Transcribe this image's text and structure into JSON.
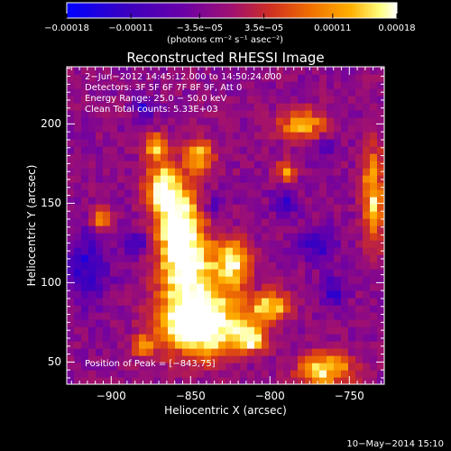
{
  "chart_data": {
    "type": "heatmap",
    "title": "Reconstructed RHESSI Image",
    "xlabel": "Heliocentric X (arcsec)",
    "ylabel": "Heliocentric Y (arcsec)",
    "xlim": [
      -928,
      -728
    ],
    "ylim": [
      36,
      236
    ],
    "xticks": [
      "−900",
      "−850",
      "−800",
      "−750"
    ],
    "xtick_values": [
      -900,
      -850,
      -800,
      -750
    ],
    "yticks": [
      "50",
      "100",
      "150",
      "200"
    ],
    "ytick_values": [
      50,
      100,
      150,
      200
    ],
    "colorbar": {
      "ticks": [
        "−0.00018",
        "−0.00011",
        "−3.5e−05",
        "3.5e−05",
        "0.00011",
        "0.00018"
      ],
      "tick_values": [
        -0.00018,
        -0.00011,
        -3.5e-05,
        3.5e-05,
        0.00011,
        0.00018
      ],
      "range": [
        -0.00018,
        0.00018
      ],
      "units": "(photons cm⁻² s⁻¹ asec⁻²)",
      "colormap": [
        "#0000ff",
        "#3a00c0",
        "#6a00a8",
        "#a01070",
        "#d03020",
        "#f07000",
        "#ffb000",
        "#ffff80",
        "#ffffff"
      ]
    },
    "annotations": [
      "2−Jun−2012 14:45:12.000 to 14:50:24.000",
      "Detectors: 3F 5F 6F 7F 8F 9F, Att 0",
      "Energy Range: 25.0 − 50.0 keV",
      "Clean    Total counts: 5.33E+03"
    ],
    "peak_label": "Position of Peak = [−843,75]",
    "peak": [
      -843,
      75
    ]
  },
  "footer": "10−May−2014 15:10"
}
